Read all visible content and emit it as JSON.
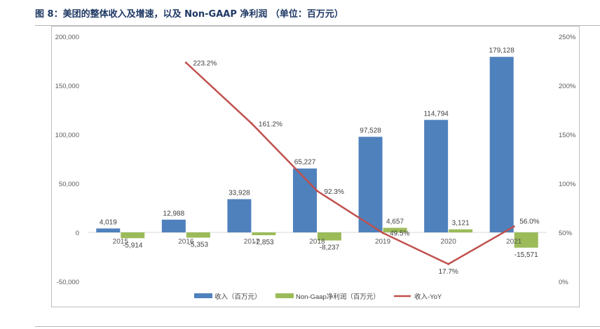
{
  "header": {
    "title": "图 8：美团的整体收入及增速，以及 Non-GAAP 净利润 （单位：百万元）"
  },
  "chart_data": {
    "type": "bar",
    "categories": [
      "2015",
      "2016",
      "2017",
      "2018",
      "2019",
      "2020",
      "2021"
    ],
    "series": [
      {
        "name": "收入（百万元）",
        "type": "bar",
        "axis": "left",
        "color": "#4f81bd",
        "values": [
          4019,
          12988,
          33928,
          65227,
          97528,
          114794,
          179128
        ],
        "labels": [
          "4,019",
          "12,988",
          "33,928",
          "65,227",
          "97,528",
          "114,794",
          "179,128"
        ]
      },
      {
        "name": "Non-Gaap净利润（百万元）",
        "type": "bar",
        "axis": "left",
        "color": "#9bbb59",
        "values": [
          -5914,
          -5353,
          -2853,
          -8237,
          4657,
          3121,
          -15571
        ],
        "labels": [
          "-5,914",
          "-5,353",
          "-2,853",
          "-8,237",
          "4,657",
          "3,121",
          "-15,571"
        ]
      },
      {
        "name": "收入-YoY",
        "type": "line",
        "axis": "right",
        "color": "#c0504d",
        "values": [
          null,
          223.2,
          161.2,
          92.3,
          49.5,
          17.7,
          56.0
        ],
        "labels": [
          "",
          "223.2%",
          "161.2%",
          "92.3%",
          "49.5%",
          "17.7%",
          "56.0%"
        ]
      }
    ],
    "y_left": {
      "ylim": [
        -50000,
        200000
      ],
      "ticks": [
        -50000,
        0,
        50000,
        100000,
        150000,
        200000
      ],
      "tick_labels": [
        "-50,000",
        "0",
        "50,000",
        "100,000",
        "150,000",
        "200,000"
      ]
    },
    "y_right": {
      "ylim": [
        0,
        250
      ],
      "ticks": [
        0,
        50,
        100,
        150,
        200,
        250
      ],
      "tick_labels": [
        "0%",
        "50%",
        "100%",
        "150%",
        "200%",
        "250%"
      ]
    },
    "grid": false,
    "legend_position": "bottom"
  }
}
